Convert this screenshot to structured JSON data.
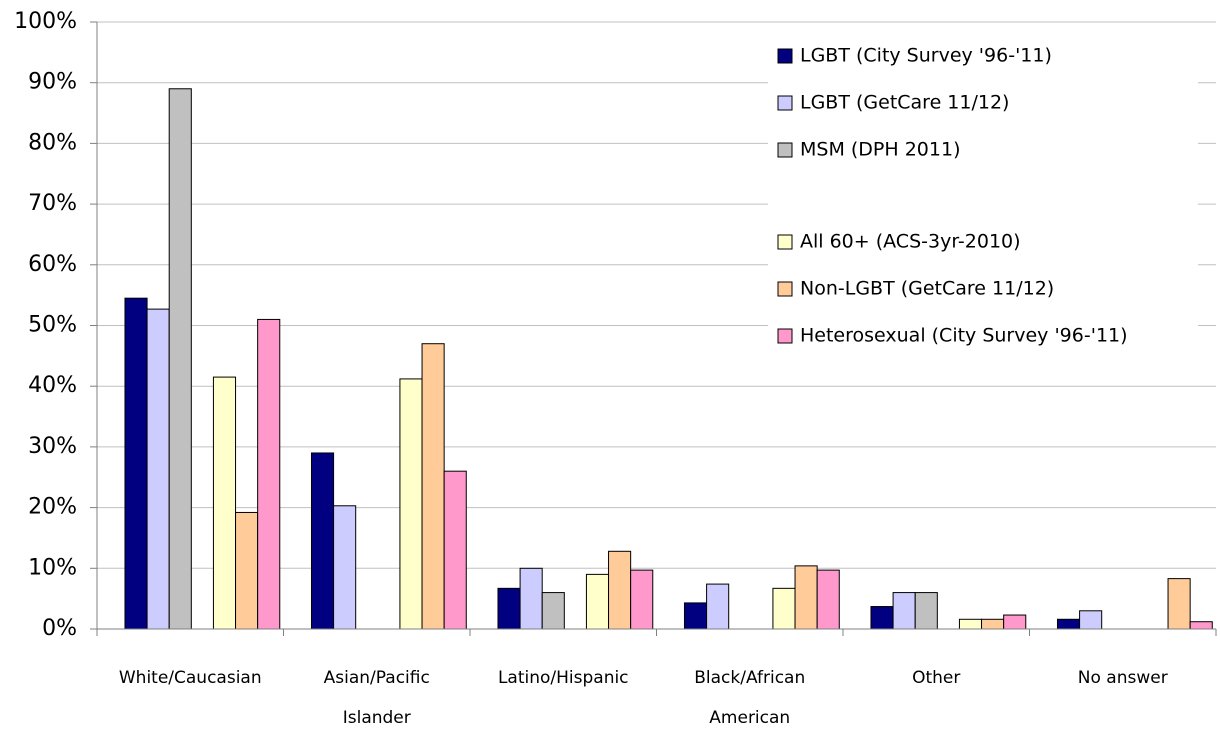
{
  "chart_data": {
    "type": "bar",
    "categories": [
      [
        "White/Caucasian"
      ],
      [
        "Asian/Pacific",
        "Islander"
      ],
      [
        "Latino/Hispanic"
      ],
      [
        "Black/African",
        "American"
      ],
      [
        "Other"
      ],
      [
        "No answer"
      ]
    ],
    "series": [
      {
        "name": "LGBT (City Survey '96-'11)",
        "color": "#000080",
        "values": [
          54.5,
          29,
          6.7,
          4.3,
          3.7,
          1.6
        ]
      },
      {
        "name": "LGBT (GetCare 11/12)",
        "color": "#ccccff",
        "values": [
          52.7,
          20.3,
          10,
          7.4,
          6,
          3
        ]
      },
      {
        "name": "MSM (DPH 2011)",
        "color": "#c0c0c0",
        "values": [
          89,
          null,
          6,
          null,
          6,
          null
        ]
      },
      {
        "name": "All 60+ (ACS-3yr-2010)",
        "color": "#ffffcc",
        "values": [
          41.5,
          41.2,
          9,
          6.7,
          1.6,
          null
        ]
      },
      {
        "name": "Non-LGBT (GetCare 11/12)",
        "color": "#ffcc99",
        "values": [
          19.2,
          47,
          12.8,
          10.4,
          1.6,
          8.3
        ]
      },
      {
        "name": "Heterosexual (City Survey '96-'11)",
        "color": "#ff99cc",
        "values": [
          51,
          26,
          9.7,
          9.7,
          2.3,
          1.2
        ]
      }
    ],
    "ylim": [
      0,
      100
    ],
    "yticks": [
      {
        "value": 0,
        "label": "0%"
      },
      {
        "value": 10,
        "label": "10%"
      },
      {
        "value": 20,
        "label": "20%"
      },
      {
        "value": 30,
        "label": "30%"
      },
      {
        "value": 40,
        "label": "40%"
      },
      {
        "value": 50,
        "label": "50%"
      },
      {
        "value": 60,
        "label": "60%"
      },
      {
        "value": 70,
        "label": "70%"
      },
      {
        "value": 80,
        "label": "80%"
      },
      {
        "value": 90,
        "label": "90%"
      },
      {
        "value": 100,
        "label": "100%"
      }
    ],
    "grid": true,
    "legend": "top-right"
  }
}
